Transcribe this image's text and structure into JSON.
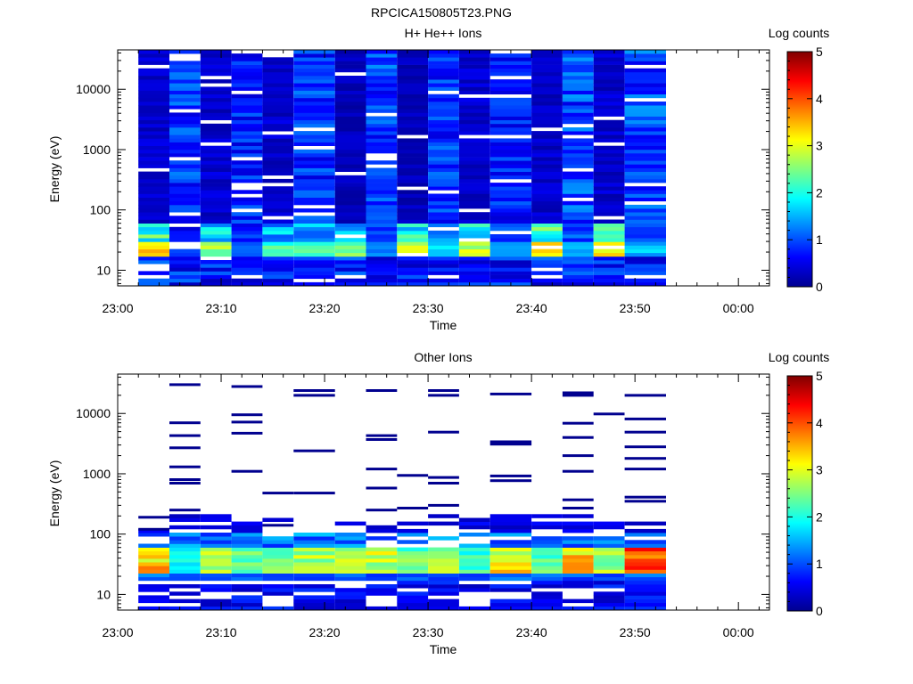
{
  "figure_title": "RPCICA150805T23.PNG",
  "chart_data": [
    {
      "type": "heatmap",
      "title": "H+ He++ Ions",
      "xlabel": "Time",
      "ylabel": "Energy (eV)",
      "colorbar_label": "Log counts",
      "x_ticks": [
        "23:00",
        "23:10",
        "23:20",
        "23:30",
        "23:40",
        "23:50",
        "00:00"
      ],
      "x_range": [
        "23:00",
        "00:03"
      ],
      "y_scale": "log",
      "y_ticks": [
        "10",
        "100",
        "1000",
        "10000"
      ],
      "y_range": [
        5.5,
        45000
      ],
      "colorbar_ticks": [
        "0",
        "1",
        "2",
        "3",
        "4",
        "5"
      ],
      "colorbar_range": [
        0,
        5
      ],
      "grid": false,
      "columns": [
        {
          "start": "23:02",
          "end": "23:05",
          "low_peak": 3.6,
          "mid_level": 0.4
        },
        {
          "start": "23:05",
          "end": "23:08",
          "low_peak": 1.0,
          "mid_level": 0.9
        },
        {
          "start": "23:08",
          "end": "23:11",
          "low_peak": 3.0,
          "mid_level": 0.4
        },
        {
          "start": "23:11",
          "end": "23:14",
          "low_peak": 1.3,
          "mid_level": 0.8
        },
        {
          "start": "23:14",
          "end": "23:17",
          "low_peak": 2.5,
          "mid_level": 0.4
        },
        {
          "start": "23:17",
          "end": "23:21",
          "low_peak": 2.3,
          "mid_level": 0.9
        },
        {
          "start": "23:21",
          "end": "23:24",
          "low_peak": 2.8,
          "mid_level": 0.3
        },
        {
          "start": "23:24",
          "end": "23:27",
          "low_peak": 1.5,
          "mid_level": 1.0
        },
        {
          "start": "23:27",
          "end": "23:30",
          "low_peak": 3.0,
          "mid_level": 0.3
        },
        {
          "start": "23:30",
          "end": "23:33",
          "low_peak": 2.0,
          "mid_level": 0.9
        },
        {
          "start": "23:33",
          "end": "23:36",
          "low_peak": 3.2,
          "mid_level": 0.4
        },
        {
          "start": "23:36",
          "end": "23:40",
          "low_peak": 1.5,
          "mid_level": 0.8
        },
        {
          "start": "23:40",
          "end": "23:43",
          "low_peak": 3.6,
          "mid_level": 0.4
        },
        {
          "start": "23:43",
          "end": "23:46",
          "low_peak": 1.6,
          "mid_level": 1.0
        },
        {
          "start": "23:46",
          "end": "23:49",
          "low_peak": 3.6,
          "mid_level": 0.4
        },
        {
          "start": "23:49",
          "end": "23:53",
          "low_peak": 1.7,
          "mid_level": 1.0
        }
      ]
    },
    {
      "type": "heatmap",
      "title": "Other Ions",
      "xlabel": "Time",
      "ylabel": "Energy (eV)",
      "colorbar_label": "Log counts",
      "x_ticks": [
        "23:00",
        "23:10",
        "23:20",
        "23:30",
        "23:40",
        "23:50",
        "00:00"
      ],
      "x_range": [
        "23:00",
        "00:03"
      ],
      "y_scale": "log",
      "y_ticks": [
        "10",
        "100",
        "1000",
        "10000"
      ],
      "y_range": [
        5.5,
        45000
      ],
      "colorbar_ticks": [
        "0",
        "1",
        "2",
        "3",
        "4",
        "5"
      ],
      "colorbar_range": [
        0,
        5
      ],
      "grid": false,
      "columns": [
        {
          "start": "23:02",
          "end": "23:05",
          "peak": 3.7
        },
        {
          "start": "23:05",
          "end": "23:08",
          "peak": 2.2
        },
        {
          "start": "23:08",
          "end": "23:11",
          "peak": 3.0
        },
        {
          "start": "23:11",
          "end": "23:14",
          "peak": 2.5
        },
        {
          "start": "23:14",
          "end": "23:17",
          "peak": 2.7
        },
        {
          "start": "23:17",
          "end": "23:21",
          "peak": 3.0
        },
        {
          "start": "23:21",
          "end": "23:24",
          "peak": 2.9
        },
        {
          "start": "23:24",
          "end": "23:27",
          "peak": 3.2
        },
        {
          "start": "23:27",
          "end": "23:30",
          "peak": 2.6
        },
        {
          "start": "23:30",
          "end": "23:33",
          "peak": 3.0
        },
        {
          "start": "23:33",
          "end": "23:36",
          "peak": 2.4
        },
        {
          "start": "23:36",
          "end": "23:40",
          "peak": 3.4
        },
        {
          "start": "23:40",
          "end": "23:43",
          "peak": 2.6
        },
        {
          "start": "23:43",
          "end": "23:46",
          "peak": 3.6
        },
        {
          "start": "23:46",
          "end": "23:49",
          "peak": 3.0
        },
        {
          "start": "23:49",
          "end": "23:53",
          "peak": 4.2
        }
      ],
      "sparse_lines": [
        {
          "start": "23:02",
          "end": "23:05",
          "energies": [
            190,
            120
          ]
        },
        {
          "start": "23:05",
          "end": "23:08",
          "energies": [
            30000,
            7000,
            4300,
            2700,
            1300,
            800,
            700,
            250
          ]
        },
        {
          "start": "23:11",
          "end": "23:14",
          "energies": [
            28000,
            9500,
            7200,
            4700,
            1100
          ]
        },
        {
          "start": "23:14",
          "end": "23:17",
          "energies": [
            480,
            140
          ]
        },
        {
          "start": "23:17",
          "end": "23:21",
          "energies": [
            24000,
            20000,
            2400,
            480
          ]
        },
        {
          "start": "23:24",
          "end": "23:27",
          "energies": [
            24000,
            4300,
            3700,
            1200,
            580,
            250
          ]
        },
        {
          "start": "23:27",
          "end": "23:30",
          "energies": [
            940,
            270
          ]
        },
        {
          "start": "23:30",
          "end": "23:33",
          "energies": [
            24000,
            20000,
            4900,
            870,
            700,
            300
          ]
        },
        {
          "start": "23:36",
          "end": "23:40",
          "energies": [
            21000,
            3400,
            3100,
            920,
            770
          ]
        },
        {
          "start": "23:43",
          "end": "23:46",
          "energies": [
            22000,
            20000,
            6900,
            4000,
            2000,
            1100,
            370,
            270
          ]
        },
        {
          "start": "23:46",
          "end": "23:49",
          "energies": [
            9800
          ]
        },
        {
          "start": "23:49",
          "end": "23:53",
          "energies": [
            20000,
            8100,
            4900,
            2800,
            1800,
            1200,
            410,
            350
          ]
        }
      ]
    }
  ]
}
